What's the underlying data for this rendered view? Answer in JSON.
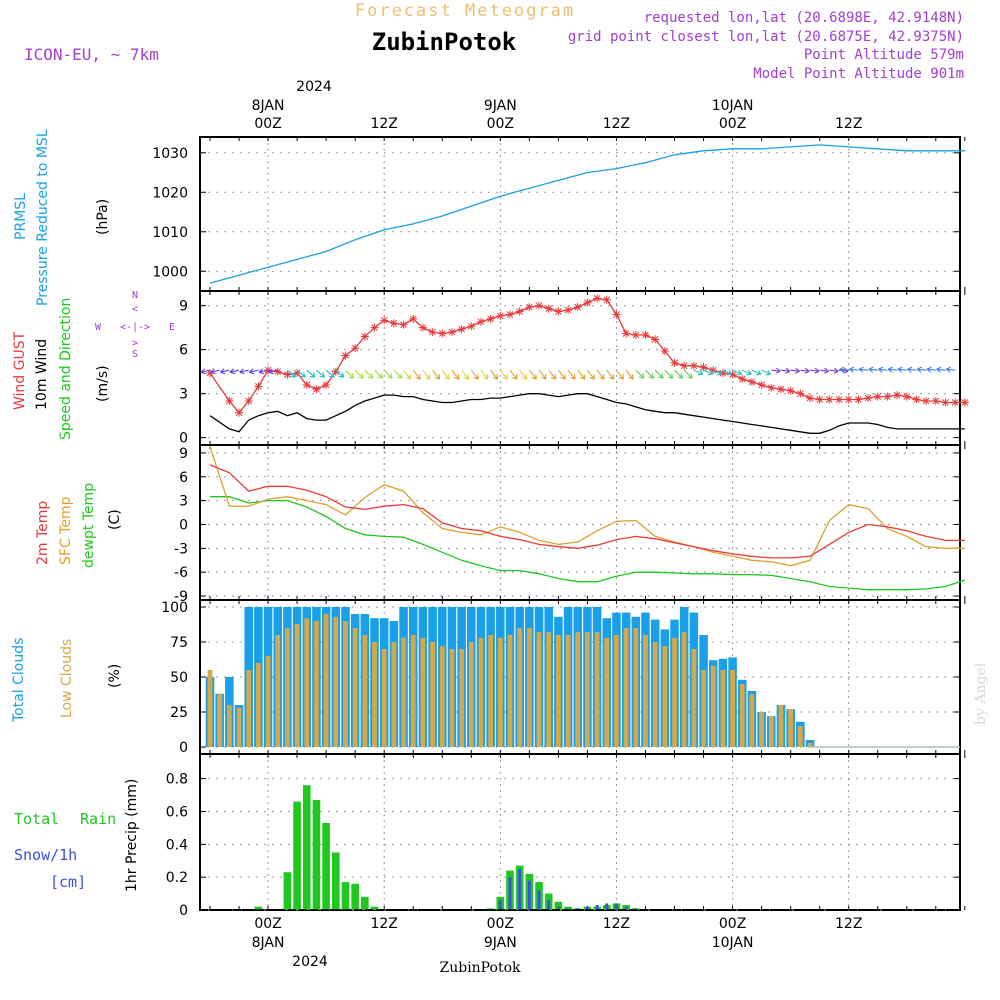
{
  "header": {
    "chart_title": "Forecast Meteogram",
    "location": "ZubinPotok",
    "model": "ICON-EU, ~ 7km",
    "requested": "requested lon,lat (20.6898E, 42.9148N)",
    "closest": "grid point closest lon,lat (20.6875E, 42.9375N)",
    "point_alt": "Point Altitude 579m",
    "model_alt": "Model Point Altitude 901m",
    "credit": "by Angel",
    "footer_location": "ZubinPotok"
  },
  "time_axis": {
    "top_year": "2024",
    "labels": [
      {
        "hour": 6,
        "line1": "8JAN",
        "line2": "00Z"
      },
      {
        "hour": 18,
        "line1": "",
        "line2": "12Z"
      },
      {
        "hour": 30,
        "line1": "9JAN",
        "line2": "00Z"
      },
      {
        "hour": 42,
        "line1": "",
        "line2": "12Z"
      },
      {
        "hour": 54,
        "line1": "10JAN",
        "line2": "00Z"
      },
      {
        "hour": 66,
        "line1": "",
        "line2": "12Z"
      }
    ],
    "bottom_labels": [
      {
        "hour": 6,
        "t": "00Z",
        "d": "8JAN"
      },
      {
        "hour": 18,
        "t": "12Z",
        "d": ""
      },
      {
        "hour": 30,
        "t": "00Z",
        "d": "9JAN"
      },
      {
        "hour": 42,
        "t": "12Z",
        "d": ""
      },
      {
        "hour": 54,
        "t": "00Z",
        "d": "10JAN"
      },
      {
        "hour": 66,
        "t": "12Z",
        "d": ""
      }
    ],
    "bottom_year": "2024",
    "hours_total": 78
  },
  "colors": {
    "pressure": "#1aa0e8",
    "gust": "#e83a3a",
    "wind": "#000000",
    "temp2m": "#e83a3a",
    "sfc": "#e0a030",
    "dewpt": "#1ec81e",
    "total_cloud": "#1aa0e8",
    "low_cloud": "#d8a848",
    "rain": "#1ec81e",
    "snow": "#3a50e8",
    "purple": "#a040d0",
    "title_orange": "#f0c070"
  },
  "panels": {
    "pressure": {
      "l1": "PRMSL",
      "l2": "Pressure Reduced to MSL",
      "unit": "(hPa)"
    },
    "wind": {
      "l1": "Wind GUST",
      "l2": "10m Wind",
      "l3": "Speed and Direction",
      "unit": "(m/s)",
      "compass_n": "N",
      "compass_s": "S",
      "compass_w": "W",
      "compass_e": "E"
    },
    "temp": {
      "l1": "2m Temp",
      "l2": "SFC Temp",
      "l3": "dewpt Temp",
      "unit": "(C)"
    },
    "cloud": {
      "l1": "Total Clouds",
      "l2": "Low Clouds",
      "unit": "(%)"
    },
    "precip": {
      "l1": "Total",
      "l1b": "Rain",
      "l2": "Snow/1h",
      "l3": "[cm]",
      "unit": "1hr Precip (mm)"
    }
  },
  "chart_data": [
    {
      "type": "line",
      "name": "pressure",
      "title": "PRMSL",
      "ylim": [
        995,
        1034
      ],
      "yticks": [
        1000,
        1010,
        1020,
        1030
      ],
      "x": [
        0,
        3,
        6,
        9,
        12,
        15,
        18,
        21,
        24,
        27,
        30,
        33,
        36,
        39,
        42,
        45,
        48,
        51,
        54,
        57,
        60,
        63,
        66,
        69,
        72,
        75,
        78
      ],
      "values": [
        997,
        999,
        1001,
        1003,
        1005,
        1008,
        1010.5,
        1012,
        1014,
        1016.5,
        1019,
        1021,
        1023,
        1025,
        1026,
        1027.5,
        1029.5,
        1030.5,
        1031,
        1031,
        1031.5,
        1032,
        1031.5,
        1031,
        1030.5,
        1030.5,
        1030.5
      ]
    },
    {
      "type": "line",
      "name": "wind",
      "ylim": [
        -0.5,
        10
      ],
      "yticks": [
        0,
        3,
        6,
        9
      ],
      "x": [
        0,
        2,
        3,
        4,
        5,
        6,
        7,
        8,
        9,
        10,
        11,
        12,
        13,
        14,
        15,
        16,
        17,
        18,
        19,
        20,
        21,
        22,
        23,
        24,
        25,
        26,
        27,
        28,
        29,
        30,
        31,
        32,
        33,
        34,
        35,
        36,
        37,
        38,
        39,
        40,
        41,
        42,
        43,
        44,
        45,
        46,
        47,
        48,
        49,
        50,
        51,
        52,
        53,
        54,
        55,
        56,
        57,
        58,
        59,
        60,
        61,
        62,
        63,
        64,
        65,
        66,
        67,
        68,
        69,
        70,
        71,
        72,
        73,
        74,
        75,
        76,
        77,
        78
      ],
      "gust": [
        4.4,
        2.5,
        1.7,
        2.5,
        3.5,
        4.6,
        4.5,
        4.3,
        4.4,
        3.6,
        3.3,
        3.6,
        4.5,
        5.6,
        6.1,
        6.9,
        7.5,
        8.0,
        7.8,
        7.7,
        8.1,
        7.5,
        7.2,
        7.1,
        7.2,
        7.4,
        7.6,
        7.9,
        8.1,
        8.3,
        8.4,
        8.6,
        8.9,
        9.0,
        8.8,
        8.6,
        8.7,
        8.9,
        9.2,
        9.5,
        9.4,
        8.4,
        7.1,
        7.0,
        7.0,
        6.7,
        5.9,
        5.1,
        4.9,
        4.9,
        4.8,
        4.6,
        4.4,
        4.3,
        4.0,
        3.8,
        3.6,
        3.4,
        3.3,
        3.2,
        3.0,
        2.7,
        2.6,
        2.6,
        2.6,
        2.6,
        2.6,
        2.7,
        2.8,
        2.8,
        2.9,
        2.8,
        2.6,
        2.5,
        2.5,
        2.4,
        2.4,
        2.4
      ],
      "speed": [
        1.5,
        0.6,
        0.4,
        1.2,
        1.5,
        1.7,
        1.8,
        1.5,
        1.7,
        1.3,
        1.2,
        1.2,
        1.5,
        1.8,
        2.2,
        2.5,
        2.7,
        2.9,
        2.9,
        2.8,
        2.8,
        2.6,
        2.5,
        2.4,
        2.4,
        2.5,
        2.6,
        2.6,
        2.7,
        2.7,
        2.8,
        2.9,
        3.0,
        3.0,
        2.9,
        2.8,
        2.9,
        3.0,
        3.0,
        2.8,
        2.6,
        2.4,
        2.3,
        2.1,
        1.9,
        1.8,
        1.7,
        1.7,
        1.6,
        1.5,
        1.4,
        1.3,
        1.2,
        1.1,
        1.0,
        0.9,
        0.8,
        0.7,
        0.6,
        0.5,
        0.4,
        0.3,
        0.3,
        0.5,
        0.8,
        1.0,
        1.0,
        1.0,
        0.9,
        0.7,
        0.6,
        0.6,
        0.6,
        0.6,
        0.6,
        0.6,
        0.6,
        0.6
      ]
    },
    {
      "type": "line",
      "name": "temperature",
      "ylim": [
        -9.5,
        10
      ],
      "yticks": [
        -9,
        -6,
        -3,
        0,
        3,
        6,
        9
      ],
      "x": [
        0,
        2,
        4,
        6,
        8,
        10,
        12,
        14,
        16,
        18,
        20,
        22,
        24,
        26,
        28,
        30,
        32,
        34,
        36,
        38,
        40,
        42,
        44,
        46,
        48,
        50,
        52,
        54,
        56,
        58,
        60,
        62,
        64,
        66,
        68,
        70,
        72,
        74,
        76,
        78
      ],
      "t2m": [
        7.5,
        6.5,
        4.2,
        4.8,
        4.8,
        4.3,
        3.5,
        2.2,
        1.9,
        2.3,
        2.5,
        2.0,
        0.2,
        -0.5,
        -0.8,
        -1.5,
        -1.9,
        -2.5,
        -2.8,
        -3.0,
        -2.6,
        -1.9,
        -1.5,
        -1.8,
        -2.3,
        -2.8,
        -3.3,
        -3.7,
        -4.0,
        -4.2,
        -4.2,
        -4.0,
        -2.5,
        -1.0,
        0.0,
        -0.3,
        -0.8,
        -1.5,
        -2.0,
        -2.0
      ],
      "sfc": [
        9.8,
        2.3,
        2.3,
        3.2,
        3.5,
        3.0,
        2.5,
        1.2,
        3.4,
        5.0,
        4.2,
        1.5,
        -0.5,
        -1.0,
        -1.3,
        -0.3,
        -1.0,
        -2.0,
        -2.5,
        -2.2,
        -0.8,
        0.4,
        0.5,
        -1.5,
        -2.2,
        -2.8,
        -3.5,
        -4.0,
        -4.5,
        -4.7,
        -5.2,
        -4.5,
        0.5,
        2.5,
        2.0,
        -0.5,
        -1.5,
        -2.8,
        -3.0,
        -3.0
      ],
      "dewpt": [
        3.5,
        3.5,
        2.7,
        3.0,
        3.0,
        2.2,
        1.0,
        -0.5,
        -1.3,
        -1.5,
        -1.6,
        -2.5,
        -3.5,
        -4.5,
        -5.2,
        -5.8,
        -5.8,
        -6.2,
        -6.8,
        -7.2,
        -7.2,
        -6.5,
        -6.0,
        -6.0,
        -6.1,
        -6.2,
        -6.2,
        -6.3,
        -6.3,
        -6.4,
        -6.8,
        -7.2,
        -7.8,
        -8.0,
        -8.2,
        -8.2,
        -8.2,
        -8.1,
        -7.8,
        -7.0
      ]
    },
    {
      "type": "bar",
      "name": "clouds",
      "ylim": [
        -5,
        105
      ],
      "yticks": [
        0,
        25,
        50,
        75,
        100
      ],
      "x": [
        0,
        1,
        2,
        3,
        4,
        5,
        6,
        7,
        8,
        9,
        10,
        11,
        12,
        13,
        14,
        15,
        16,
        17,
        18,
        19,
        20,
        21,
        22,
        23,
        24,
        25,
        26,
        27,
        28,
        29,
        30,
        31,
        32,
        33,
        34,
        35,
        36,
        37,
        38,
        39,
        40,
        41,
        42,
        43,
        44,
        45,
        46,
        47,
        48,
        49,
        50,
        51,
        52,
        53,
        54,
        55,
        56,
        57,
        58,
        59,
        60,
        61,
        62,
        63,
        64,
        65,
        66,
        67,
        68,
        69,
        70,
        71,
        72,
        73,
        74,
        75,
        76,
        77
      ],
      "total": [
        50,
        38,
        50,
        30,
        100,
        100,
        100,
        100,
        100,
        100,
        100,
        100,
        100,
        100,
        100,
        95,
        95,
        92,
        92,
        90,
        100,
        100,
        100,
        100,
        100,
        100,
        100,
        100,
        100,
        100,
        100,
        100,
        100,
        100,
        100,
        100,
        93,
        100,
        100,
        100,
        100,
        92,
        96,
        96,
        93,
        96,
        91,
        84,
        91,
        100,
        96,
        80,
        62,
        63,
        64,
        48,
        40,
        25,
        22,
        30,
        27,
        18,
        5,
        0,
        0,
        0,
        0,
        0,
        0,
        0,
        0,
        0,
        0,
        0,
        0,
        0,
        0,
        0
      ],
      "low": [
        55,
        38,
        30,
        28,
        55,
        60,
        65,
        80,
        85,
        88,
        92,
        90,
        95,
        93,
        90,
        85,
        80,
        75,
        70,
        75,
        78,
        80,
        78,
        75,
        72,
        70,
        70,
        75,
        78,
        80,
        78,
        80,
        85,
        85,
        82,
        82,
        80,
        80,
        82,
        82,
        82,
        78,
        80,
        85,
        85,
        80,
        75,
        72,
        78,
        82,
        70,
        55,
        58,
        55,
        55,
        45,
        38,
        25,
        22,
        30,
        27,
        15,
        3,
        0,
        0,
        0,
        0,
        0,
        0,
        0,
        0,
        0,
        0,
        0,
        0,
        0,
        0,
        0
      ]
    },
    {
      "type": "bar",
      "name": "precip",
      "ylim": [
        0,
        0.95
      ],
      "yticks": [
        0,
        0.2,
        0.4,
        0.6,
        0.8
      ],
      "x": [
        0,
        1,
        2,
        3,
        4,
        5,
        6,
        7,
        8,
        9,
        10,
        11,
        12,
        13,
        14,
        15,
        16,
        17,
        18,
        19,
        20,
        21,
        22,
        23,
        24,
        25,
        26,
        27,
        28,
        29,
        30,
        31,
        32,
        33,
        34,
        35,
        36,
        37,
        38,
        39,
        40,
        41,
        42,
        43,
        44,
        45,
        46,
        47,
        48,
        49,
        50,
        51,
        52,
        53,
        54,
        55,
        56,
        57,
        58,
        59,
        60,
        61,
        62,
        63,
        64,
        65,
        66,
        67,
        68,
        69,
        70,
        71,
        72,
        73,
        74,
        75,
        76,
        77
      ],
      "rain": [
        0,
        0,
        0,
        0,
        0,
        0.02,
        0,
        0,
        0.23,
        0.66,
        0.76,
        0.67,
        0.53,
        0.35,
        0.17,
        0.16,
        0.08,
        0.02,
        0,
        0,
        0,
        0,
        0,
        0,
        0,
        0,
        0,
        0,
        0,
        0.01,
        0.08,
        0.24,
        0.27,
        0.22,
        0.17,
        0.1,
        0.05,
        0.02,
        0.01,
        0.02,
        0.02,
        0.03,
        0.04,
        0.03,
        0.01,
        0,
        0,
        0,
        0,
        0,
        0,
        0,
        0,
        0,
        0,
        0,
        0,
        0,
        0,
        0,
        0,
        0,
        0,
        0,
        0,
        0,
        0,
        0,
        0,
        0,
        0,
        0,
        0,
        0,
        0,
        0,
        0,
        0
      ],
      "snow": [
        0,
        0,
        0,
        0,
        0,
        0,
        0,
        0,
        0,
        0,
        0,
        0,
        0,
        0,
        0,
        0,
        0,
        0,
        0,
        0,
        0,
        0,
        0,
        0,
        0,
        0,
        0,
        0,
        0,
        0,
        0.06,
        0.2,
        0.25,
        0.18,
        0.12,
        0.06,
        0.02,
        0.01,
        0.01,
        0.02,
        0.03,
        0.04,
        0.04,
        0.02,
        0.01,
        0,
        0,
        0,
        0,
        0,
        0,
        0,
        0,
        0,
        0,
        0,
        0,
        0,
        0,
        0,
        0,
        0,
        0,
        0,
        0,
        0,
        0,
        0,
        0,
        0,
        0,
        0,
        0,
        0,
        0,
        0,
        0,
        0
      ]
    }
  ]
}
